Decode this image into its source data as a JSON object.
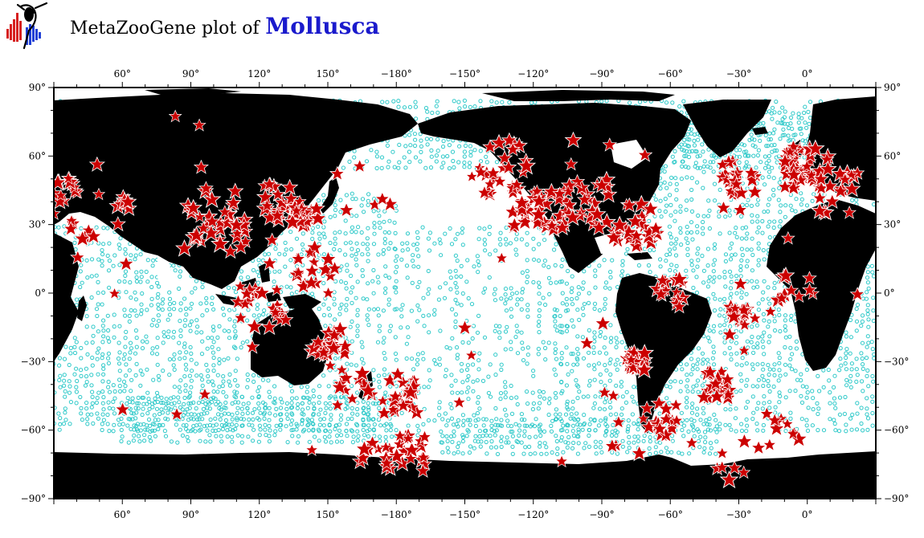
{
  "header": {
    "title_prefix": "MetaZooGene plot of",
    "taxon": "Mollusca"
  },
  "colors": {
    "land": "#000000",
    "ocean": "#ffffff",
    "station_circle": "#2ec9c9",
    "occurrence_star": "#cc0000",
    "star_outline": "#ffffff",
    "taxon_title": "#1a1acc"
  },
  "icons": {
    "logo": "metazoogene-logo"
  },
  "map": {
    "projection": "equirectangular, centered on the Pacific",
    "lon_range": [
      30,
      390
    ],
    "lat_range": [
      -90,
      90
    ],
    "top_tick_labels": [
      "60°",
      "90°",
      "120°",
      "150°",
      "−180°",
      "−150°",
      "−120°",
      "−90°",
      "−60°",
      "−30°",
      "0°"
    ],
    "bottom_tick_labels": [
      "60°",
      "90°",
      "120°",
      "150°",
      "−180°",
      "−150°",
      "−120°",
      "−90°",
      "−60°",
      "−30°",
      "0°"
    ],
    "left_tick_labels": [
      "90°",
      "60°",
      "30°",
      "0°",
      "−30°",
      "−60°",
      "−90°"
    ],
    "right_tick_labels": [
      "90°",
      "60°",
      "30°",
      "0°",
      "−30°",
      "−60°",
      "−90°"
    ],
    "legend": []
  }
}
